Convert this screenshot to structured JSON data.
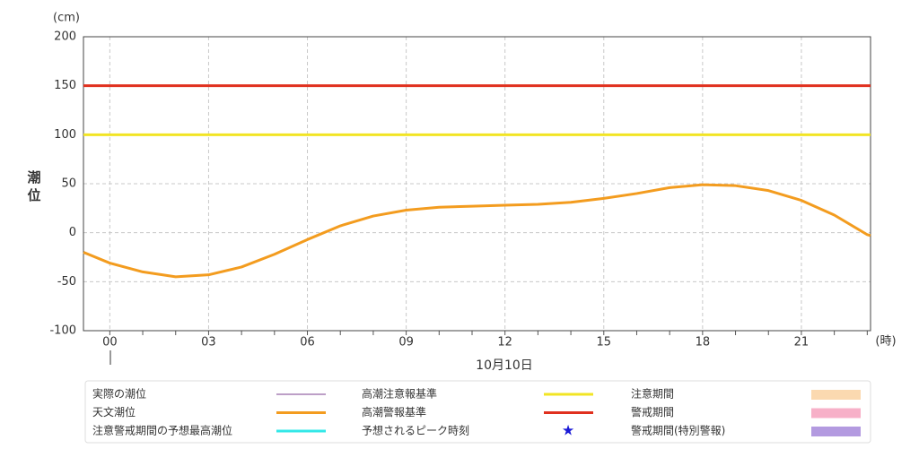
{
  "chart_data": {
    "type": "line",
    "y_unit": "(cm)",
    "ylabel": "潮位",
    "x_unit": "(時)",
    "xlabel": "10月10日",
    "xlim": [
      -0.8,
      23.1
    ],
    "xticks": [
      {
        "value": 0,
        "label": "00"
      },
      {
        "value": 3,
        "label": "03"
      },
      {
        "value": 6,
        "label": "06"
      },
      {
        "value": 9,
        "label": "09"
      },
      12,
      15,
      18,
      21
    ],
    "ylim": [
      -100,
      200
    ],
    "yticks": [
      -100,
      -50,
      0,
      50,
      100,
      150,
      200
    ],
    "grid": true,
    "series": [
      {
        "name": "天文潮位",
        "color": "#f39c1f",
        "x": [
          -0.8,
          0,
          1,
          2,
          3,
          4,
          5,
          6,
          7,
          8,
          9,
          10,
          11,
          12,
          13,
          14,
          15,
          16,
          17,
          18,
          19,
          20,
          21,
          22,
          23,
          23.1
        ],
        "values": [
          -20,
          -31,
          -40,
          -45,
          -43,
          -35,
          -22,
          -7,
          7,
          17,
          23,
          26,
          27,
          28,
          29,
          31,
          35,
          40,
          46,
          49,
          48,
          43,
          33,
          18,
          -2,
          -3
        ]
      },
      {
        "name": "高潮注意報基準",
        "color": "#f2e424",
        "x": [
          -0.8,
          23.1
        ],
        "values": [
          100,
          100
        ]
      },
      {
        "name": "高潮警報基準",
        "color": "#e0301e",
        "x": [
          -0.8,
          23.1
        ],
        "values": [
          150,
          150
        ]
      }
    ],
    "legend_extra": [
      {
        "name": "実際の潮位",
        "color": "#7b3f8f",
        "symbol": "thin-line"
      },
      {
        "name": "注意警戒期間の予想最高潮位",
        "color": "#33e8e8",
        "symbol": "line"
      },
      {
        "name": "予想されるピーク時刻",
        "color": "#1a1ad6",
        "symbol": "star"
      },
      {
        "name": "注意期間",
        "color": "#fbd9b0",
        "symbol": "box"
      },
      {
        "name": "警戒期間",
        "color": "#f7b0c8",
        "symbol": "box"
      },
      {
        "name": "警戒期間(特別警報)",
        "color": "#b39ae0",
        "symbol": "box"
      }
    ]
  }
}
